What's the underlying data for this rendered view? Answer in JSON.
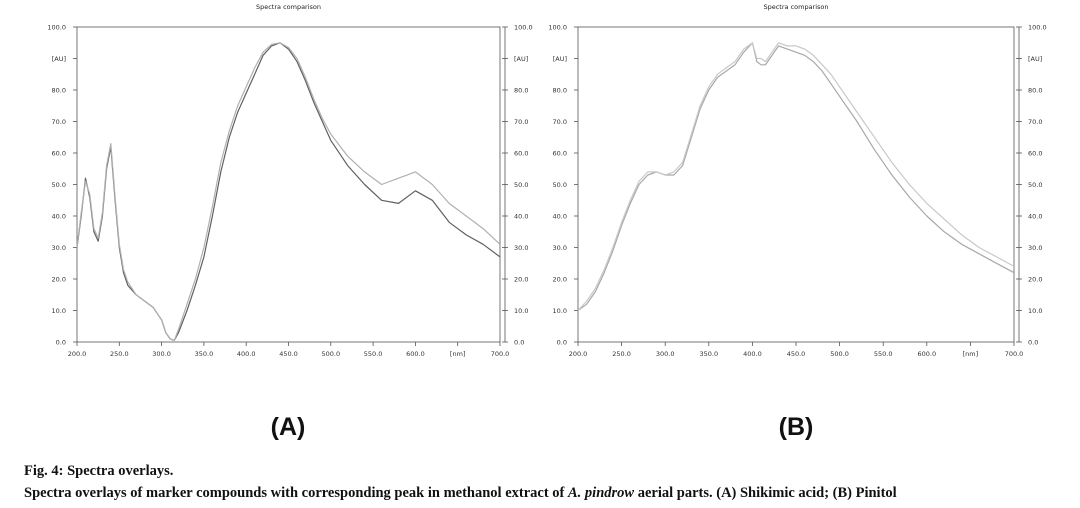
{
  "caption": {
    "title": "Fig. 4: Spectra overlays.",
    "text_before": "Spectra overlays of marker compounds with corresponding peak in methanol extract of ",
    "species": "A. pindrow",
    "text_after": " aerial parts. (A) Shikimic acid; (B) Pinitol"
  },
  "chart_data": [
    {
      "type": "line",
      "panel_label": "(A)",
      "title": "Spectra comparison",
      "x_ticks": [
        "200.0",
        "250.0",
        "300.0",
        "350.0",
        "400.0",
        "450.0",
        "500.0",
        "550.0",
        "600.0",
        "[nm]",
        "700.0"
      ],
      "y_ticks_left": [
        "0.0",
        "10.0",
        "20.0",
        "30.0",
        "40.0",
        "50.0",
        "60.0",
        "70.0",
        "80.0",
        "[AU]",
        "100.0"
      ],
      "y_ticks_right": [
        "0.0",
        "10.0",
        "20.0",
        "30.0",
        "40.0",
        "50.0",
        "60.0",
        "70.0",
        "80.0",
        "[AU]",
        "100.0"
      ],
      "xlim": [
        200,
        700
      ],
      "ylim": [
        0,
        100
      ],
      "series": [
        {
          "color": "#606060",
          "x": [
            200,
            205,
            210,
            215,
            220,
            225,
            230,
            235,
            240,
            245,
            250,
            255,
            260,
            270,
            280,
            290,
            300,
            305,
            310,
            315,
            320,
            330,
            340,
            350,
            360,
            370,
            380,
            390,
            400,
            410,
            420,
            430,
            440,
            450,
            460,
            470,
            480,
            490,
            500,
            520,
            540,
            560,
            580,
            600,
            620,
            640,
            660,
            680,
            700
          ],
          "y": [
            30,
            40,
            52,
            46,
            35,
            32,
            40,
            55,
            62,
            45,
            30,
            22,
            18,
            15,
            13,
            11,
            7,
            3,
            1,
            0.5,
            3,
            10,
            18,
            27,
            40,
            54,
            65,
            73,
            79,
            85,
            91,
            94,
            95,
            93,
            89,
            83,
            76,
            70,
            64,
            56,
            50,
            45,
            44,
            48,
            45,
            38,
            34,
            31,
            27
          ]
        },
        {
          "color": "#b0b0b0",
          "x": [
            200,
            205,
            210,
            215,
            220,
            225,
            230,
            235,
            240,
            245,
            250,
            255,
            260,
            270,
            280,
            290,
            300,
            305,
            310,
            315,
            320,
            330,
            340,
            350,
            360,
            370,
            380,
            390,
            400,
            410,
            420,
            430,
            440,
            450,
            460,
            470,
            480,
            490,
            500,
            520,
            540,
            560,
            580,
            600,
            620,
            640,
            660,
            680,
            700
          ],
          "y": [
            30,
            41,
            51,
            47,
            36,
            33,
            41,
            56,
            63,
            46,
            31,
            23,
            19,
            15,
            13,
            11,
            7,
            3,
            1,
            0.5,
            4,
            12,
            20,
            30,
            43,
            57,
            67,
            75,
            81,
            87,
            92,
            94.5,
            95,
            93.5,
            90,
            84,
            77,
            71,
            66,
            59,
            54,
            50,
            52,
            54,
            50,
            44,
            40,
            36,
            31
          ]
        }
      ]
    },
    {
      "type": "line",
      "panel_label": "(B)",
      "title": "Spectra comparison",
      "x_ticks": [
        "200.0",
        "250.0",
        "300.0",
        "350.0",
        "400.0",
        "450.0",
        "500.0",
        "550.0",
        "600.0",
        "[nm]",
        "700.0"
      ],
      "y_ticks_left": [
        "0.0",
        "10.0",
        "20.0",
        "30.0",
        "40.0",
        "50.0",
        "60.0",
        "70.0",
        "80.0",
        "[AU]",
        "100.0"
      ],
      "y_ticks_right": [
        "0.0",
        "10.0",
        "20.0",
        "30.0",
        "40.0",
        "50.0",
        "60.0",
        "70.0",
        "80.0",
        "[AU]",
        "100.0"
      ],
      "xlim": [
        200,
        700
      ],
      "ylim": [
        0,
        100
      ],
      "series": [
        {
          "color": "#a8a8a8",
          "x": [
            200,
            210,
            220,
            230,
            240,
            250,
            260,
            270,
            280,
            290,
            300,
            310,
            320,
            330,
            340,
            350,
            360,
            370,
            380,
            390,
            400,
            405,
            410,
            415,
            420,
            425,
            430,
            440,
            450,
            460,
            470,
            480,
            490,
            500,
            520,
            540,
            560,
            580,
            600,
            620,
            640,
            660,
            680,
            700
          ],
          "y": [
            10,
            12,
            16,
            22,
            29,
            37,
            44,
            50,
            53,
            54,
            53,
            53,
            56,
            65,
            74,
            80,
            84,
            86,
            88,
            92,
            95,
            89,
            88,
            88,
            90,
            92,
            94,
            93,
            92,
            91,
            89,
            86,
            82,
            78,
            70,
            61,
            53,
            46,
            40,
            35,
            31,
            28,
            25,
            22
          ]
        },
        {
          "color": "#c8c8c8",
          "x": [
            200,
            210,
            220,
            230,
            240,
            250,
            260,
            270,
            280,
            290,
            300,
            310,
            320,
            330,
            340,
            350,
            360,
            370,
            380,
            390,
            400,
            405,
            410,
            415,
            420,
            425,
            430,
            440,
            450,
            460,
            470,
            480,
            490,
            500,
            520,
            540,
            560,
            580,
            600,
            620,
            640,
            660,
            680,
            700
          ],
          "y": [
            10,
            13,
            17,
            23,
            30,
            38,
            45,
            51,
            54,
            54,
            53,
            54,
            57,
            66,
            75,
            81,
            85,
            87,
            89,
            93,
            95,
            90,
            90,
            89,
            91,
            93,
            95,
            94,
            94,
            93,
            91,
            88,
            85,
            81,
            73,
            65,
            57,
            50,
            44,
            39,
            34,
            30,
            27,
            24
          ]
        }
      ]
    }
  ]
}
